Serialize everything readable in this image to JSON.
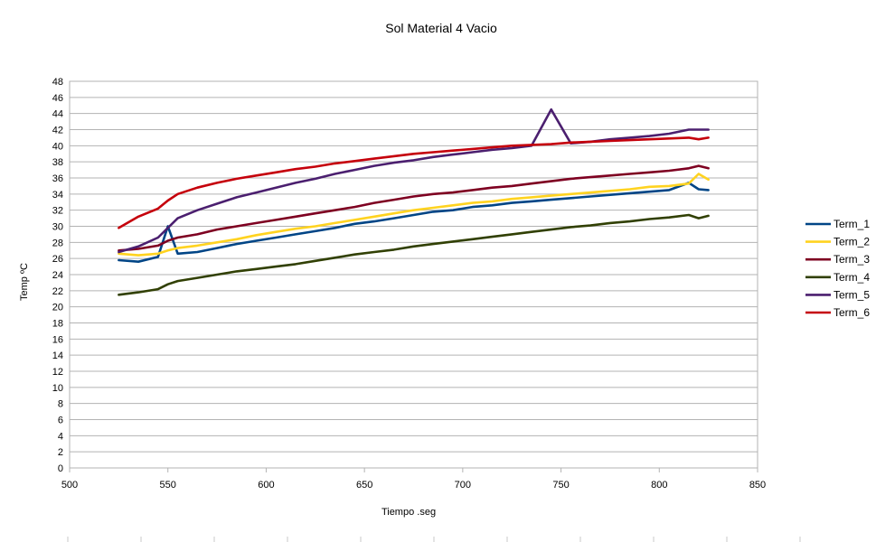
{
  "chart_data": {
    "type": "line",
    "title": "Sol Material 4 Vacio",
    "xlabel": "Tiempo .seg",
    "ylabel": "Temp ºC",
    "xlim": [
      500,
      850
    ],
    "ylim": [
      0,
      48
    ],
    "xticks": [
      500,
      550,
      600,
      650,
      700,
      750,
      800,
      850
    ],
    "yticks": [
      0,
      2,
      4,
      6,
      8,
      10,
      12,
      14,
      16,
      18,
      20,
      22,
      24,
      26,
      28,
      30,
      32,
      34,
      36,
      38,
      40,
      42,
      44,
      46,
      48
    ],
    "grid": true,
    "legend_position": "right",
    "x": [
      525,
      535,
      545,
      550,
      555,
      565,
      575,
      585,
      595,
      605,
      615,
      625,
      635,
      645,
      655,
      665,
      675,
      685,
      695,
      705,
      715,
      725,
      735,
      745,
      755,
      765,
      775,
      785,
      795,
      805,
      815,
      820,
      825
    ],
    "series": [
      {
        "name": "Term_1",
        "color": "#004586",
        "values": [
          25.8,
          25.6,
          26.2,
          30.0,
          26.6,
          26.8,
          27.3,
          27.8,
          28.2,
          28.6,
          29.0,
          29.4,
          29.8,
          30.3,
          30.6,
          31.0,
          31.4,
          31.8,
          32.0,
          32.4,
          32.6,
          32.9,
          33.1,
          33.3,
          33.5,
          33.7,
          33.9,
          34.1,
          34.3,
          34.5,
          35.4,
          34.6,
          34.5
        ]
      },
      {
        "name": "Term_2",
        "color": "#ffd320",
        "values": [
          26.6,
          26.4,
          26.6,
          27.0,
          27.3,
          27.6,
          28.0,
          28.4,
          28.9,
          29.3,
          29.7,
          30.0,
          30.4,
          30.8,
          31.2,
          31.6,
          32.0,
          32.3,
          32.6,
          32.9,
          33.1,
          33.4,
          33.6,
          33.8,
          34.0,
          34.2,
          34.4,
          34.6,
          34.9,
          35.0,
          35.3,
          36.5,
          35.8
        ]
      },
      {
        "name": "Term_3",
        "color": "#7e0021",
        "values": [
          27.0,
          27.2,
          27.6,
          28.2,
          28.6,
          29.0,
          29.6,
          30.0,
          30.4,
          30.8,
          31.2,
          31.6,
          32.0,
          32.4,
          32.9,
          33.3,
          33.7,
          34.0,
          34.2,
          34.5,
          34.8,
          35.0,
          35.3,
          35.6,
          35.9,
          36.1,
          36.3,
          36.5,
          36.7,
          36.9,
          37.2,
          37.5,
          37.2
        ]
      },
      {
        "name": "Term_4",
        "color": "#314004",
        "values": [
          21.5,
          21.8,
          22.2,
          22.8,
          23.2,
          23.6,
          24.0,
          24.4,
          24.7,
          25.0,
          25.3,
          25.7,
          26.1,
          26.5,
          26.8,
          27.1,
          27.5,
          27.8,
          28.1,
          28.4,
          28.7,
          29.0,
          29.3,
          29.6,
          29.9,
          30.1,
          30.4,
          30.6,
          30.9,
          31.1,
          31.4,
          31.0,
          31.3
        ]
      },
      {
        "name": "Term_5",
        "color": "#4b1f6f",
        "values": [
          26.8,
          27.5,
          28.6,
          29.8,
          31.0,
          32.0,
          32.8,
          33.6,
          34.2,
          34.8,
          35.4,
          35.9,
          36.5,
          37.0,
          37.5,
          37.9,
          38.2,
          38.6,
          38.9,
          39.2,
          39.5,
          39.7,
          40.0,
          44.5,
          40.3,
          40.5,
          40.8,
          41.0,
          41.2,
          41.5,
          42.0,
          42.0,
          42.0
        ]
      },
      {
        "name": "Term_6",
        "color": "#c5000b",
        "values": [
          29.8,
          31.2,
          32.2,
          33.2,
          34.0,
          34.8,
          35.4,
          35.9,
          36.3,
          36.7,
          37.1,
          37.4,
          37.8,
          38.1,
          38.4,
          38.7,
          39.0,
          39.2,
          39.4,
          39.6,
          39.8,
          40.0,
          40.1,
          40.2,
          40.4,
          40.5,
          40.6,
          40.7,
          40.8,
          40.9,
          41.0,
          40.8,
          41.0
        ]
      }
    ]
  }
}
